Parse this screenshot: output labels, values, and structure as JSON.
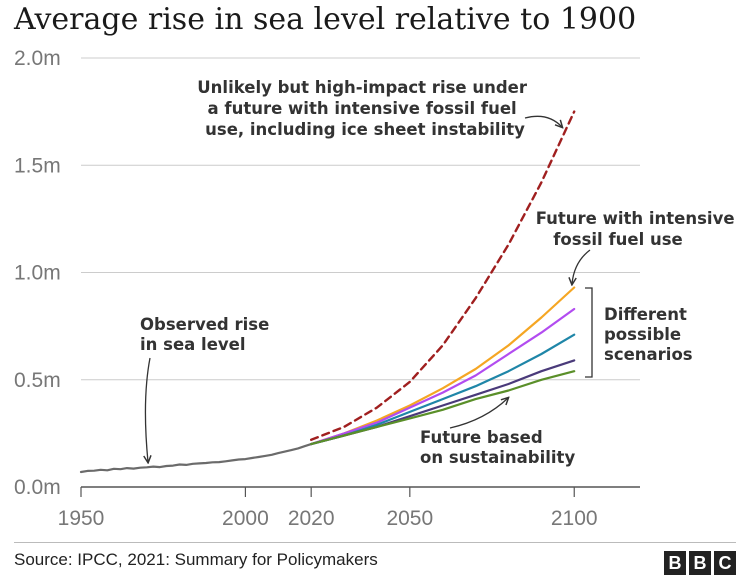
{
  "chart_data": {
    "type": "line",
    "title": "Average rise in sea level relative to 1900",
    "xlim": [
      1950,
      2120
    ],
    "ylim": [
      0,
      2.0
    ],
    "x_ticks": [
      1950,
      2000,
      2020,
      2050,
      2100
    ],
    "x_tick_labels": [
      "1950",
      "2000",
      "2020",
      "2050",
      "2100"
    ],
    "y_ticks": [
      0,
      0.5,
      1.0,
      1.5,
      2.0
    ],
    "y_tick_labels": [
      "0.0m",
      "0.5m",
      "1.0m",
      "1.5m",
      "2.0m"
    ],
    "grid": "horizontal",
    "observed": {
      "color": "#6b6b6b",
      "x": [
        1950,
        1952,
        1954,
        1956,
        1958,
        1960,
        1962,
        1964,
        1966,
        1968,
        1970,
        1972,
        1974,
        1976,
        1978,
        1980,
        1982,
        1984,
        1986,
        1988,
        1990,
        1992,
        1994,
        1996,
        1998,
        2000,
        2002,
        2004,
        2006,
        2008,
        2010,
        2012,
        2014,
        2016,
        2018,
        2020
      ],
      "values": [
        0.07,
        0.075,
        0.076,
        0.08,
        0.078,
        0.085,
        0.083,
        0.088,
        0.086,
        0.09,
        0.092,
        0.095,
        0.093,
        0.098,
        0.1,
        0.105,
        0.103,
        0.108,
        0.11,
        0.112,
        0.115,
        0.116,
        0.12,
        0.124,
        0.128,
        0.13,
        0.135,
        0.14,
        0.145,
        0.15,
        0.158,
        0.165,
        0.172,
        0.18,
        0.19,
        0.2
      ]
    },
    "scenarios": [
      {
        "color": "#f5a623",
        "x": [
          2020,
          2030,
          2040,
          2050,
          2060,
          2070,
          2080,
          2090,
          2100
        ],
        "values": [
          0.2,
          0.25,
          0.31,
          0.38,
          0.46,
          0.55,
          0.66,
          0.79,
          0.93
        ]
      },
      {
        "color": "#b24cf0",
        "x": [
          2020,
          2030,
          2040,
          2050,
          2060,
          2070,
          2080,
          2090,
          2100
        ],
        "values": [
          0.2,
          0.25,
          0.3,
          0.37,
          0.44,
          0.52,
          0.62,
          0.72,
          0.83
        ]
      },
      {
        "color": "#1f86a8",
        "x": [
          2020,
          2030,
          2040,
          2050,
          2060,
          2070,
          2080,
          2090,
          2100
        ],
        "values": [
          0.2,
          0.24,
          0.29,
          0.35,
          0.41,
          0.47,
          0.54,
          0.62,
          0.71
        ]
      },
      {
        "color": "#4a3a7a",
        "x": [
          2020,
          2030,
          2040,
          2050,
          2060,
          2070,
          2080,
          2090,
          2100
        ],
        "values": [
          0.2,
          0.24,
          0.28,
          0.33,
          0.38,
          0.43,
          0.48,
          0.54,
          0.59
        ]
      },
      {
        "color": "#5a8f29",
        "x": [
          2020,
          2030,
          2040,
          2050,
          2060,
          2070,
          2080,
          2090,
          2100
        ],
        "values": [
          0.2,
          0.24,
          0.28,
          0.32,
          0.36,
          0.41,
          0.45,
          0.5,
          0.54
        ]
      }
    ],
    "high_impact": {
      "color": "#a01f1f",
      "style": "dashed",
      "x": [
        2020,
        2030,
        2040,
        2050,
        2060,
        2070,
        2080,
        2090,
        2100
      ],
      "values": [
        0.22,
        0.28,
        0.37,
        0.49,
        0.66,
        0.88,
        1.13,
        1.42,
        1.75
      ]
    },
    "annotations": {
      "high_impact": [
        "Unlikely but high-impact rise under",
        "a future with intensive fossil fuel",
        "use, including ice sheet instability"
      ],
      "intensive": [
        "Future with intensive",
        "fossil fuel use"
      ],
      "scenarios": [
        "Different",
        "possible",
        "scenarios"
      ],
      "observed": [
        "Observed rise",
        "in sea level"
      ],
      "sustainability": [
        "Future based",
        "on sustainability"
      ]
    }
  },
  "footer": {
    "source": "Source: IPCC, 2021: Summary for Policymakers",
    "logo_letters": [
      "B",
      "B",
      "C"
    ]
  }
}
